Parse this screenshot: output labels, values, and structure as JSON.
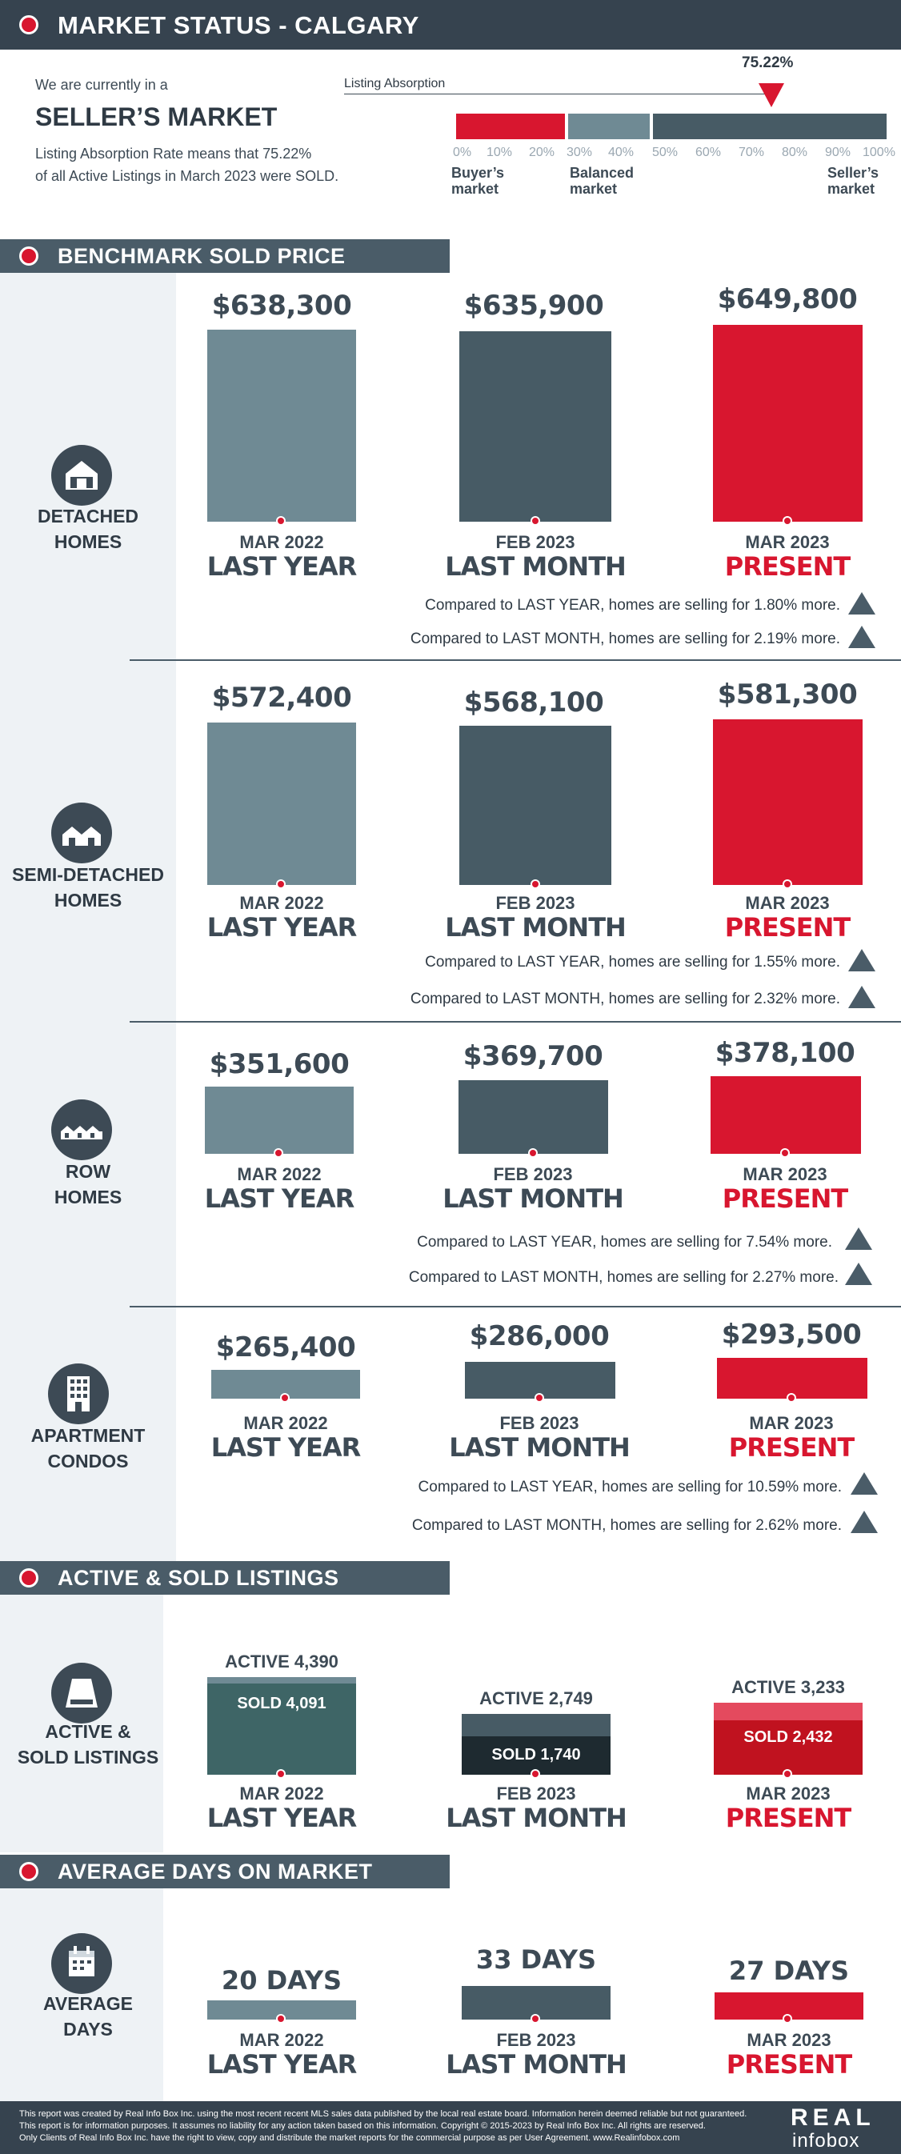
{
  "header": {
    "title": "MARKET STATUS - CALGARY"
  },
  "market": {
    "intro": "We are currently in a",
    "status": "SELLER’S MARKET",
    "desc_line1": "Listing Absorption Rate means that 75.22%",
    "desc_line2": "of all Active Listings in March 2023 were SOLD.",
    "absorption_label": "Listing Absorption",
    "absorption_value": "75.22%",
    "absorption_fraction": 0.7522,
    "ticks": [
      "0%",
      "10%",
      "20%",
      "30%",
      "40%",
      "50%",
      "60%",
      "70%",
      "80%",
      "90%",
      "100%"
    ],
    "buyer": [
      "Buyer’s",
      "market"
    ],
    "balanced": [
      "Balanced",
      "market"
    ],
    "seller": [
      "Seller’s",
      "market"
    ],
    "colors": {
      "buyer": "#d8162f",
      "balanced": "#6f8a94",
      "seller": "#475b65"
    }
  },
  "sections": {
    "benchmark": "BENCHMARK SOLD PRICE",
    "listings": "ACTIVE & SOLD LISTINGS",
    "days": "AVERAGE DAYS ON MARKET"
  },
  "periods": {
    "ly_month": "MAR 2022",
    "ly": "LAST YEAR",
    "lm_month": "FEB 2023",
    "lm": "LAST MONTH",
    "pr_month": "MAR 2023",
    "pr": "PRESENT"
  },
  "detached": {
    "label1": "DETACHED",
    "label2": "HOMES",
    "ly_price": "$638,300",
    "lm_price": "$635,900",
    "pr_price": "$649,800",
    "cmp_ly": "Compared to LAST YEAR, homes are selling for 1.80% more.",
    "cmp_lm": "Compared to LAST MONTH, homes are selling for 2.19% more."
  },
  "semi": {
    "label1": "SEMI-DETACHED",
    "label2": "HOMES",
    "ly_price": "$572,400",
    "lm_price": "$568,100",
    "pr_price": "$581,300",
    "cmp_ly": "Compared to LAST YEAR, homes are selling for 1.55% more.",
    "cmp_lm": "Compared to LAST MONTH, homes are selling for 2.32% more."
  },
  "row": {
    "label1": "ROW",
    "label2": "HOMES",
    "ly_price": "$351,600",
    "lm_price": "$369,700",
    "pr_price": "$378,100",
    "cmp_ly": "Compared to LAST YEAR, homes are selling for 7.54% more.",
    "cmp_lm": "Compared to LAST MONTH, homes are selling for 2.27% more."
  },
  "apartment": {
    "label1": "APARTMENT",
    "label2": "CONDOS",
    "ly_price": "$265,400",
    "lm_price": "$286,000",
    "pr_price": "$293,500",
    "cmp_ly": "Compared to LAST YEAR, homes are selling for 10.59% more.",
    "cmp_lm": "Compared to LAST MONTH, homes are selling for 2.62% more."
  },
  "listings": {
    "label1": "ACTIVE &",
    "label2": "SOLD LISTINGS",
    "ly_active": "ACTIVE 4,390",
    "ly_sold": "SOLD 4,091",
    "lm_active": "ACTIVE 2,749",
    "lm_sold": "SOLD 1,740",
    "pr_active": "ACTIVE 3,233",
    "pr_sold": "SOLD 2,432"
  },
  "days": {
    "label1": "AVERAGE",
    "label2": "DAYS",
    "ly": "20 DAYS",
    "lm": "33 DAYS",
    "pr": "27 DAYS"
  },
  "footer": {
    "line1": "This report was created by Real Info Box Inc. using the most recent  recent MLS sales data published by the local real estate board. Information herein deemed reliable but not guaranteed.",
    "line2": "This report is for information purposes. It assumes no liability for any action taken based on this information. Copyright © 2015-2023 by Real Info Box Inc. All rights are reserved.",
    "line3": "Only Clients of Real Info Box Inc. have the right to view, copy and distribute the market reports for the commercial purpose as per User Agreement. www.Realinfobox.com",
    "logo_top": "REAL",
    "logo_bottom": "infobox"
  }
}
